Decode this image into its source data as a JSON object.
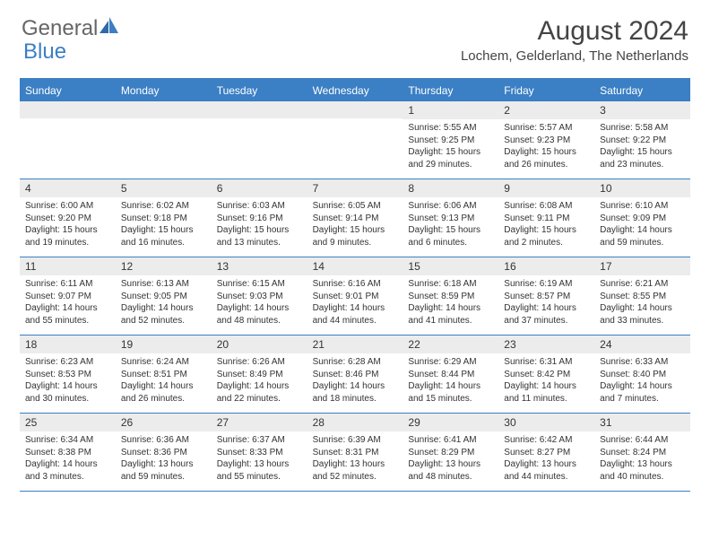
{
  "logo": {
    "word1": "General",
    "word2": "Blue"
  },
  "title": "August 2024",
  "location": "Lochem, Gelderland, The Netherlands",
  "colors": {
    "accent": "#3b7fc4",
    "header_text": "#ffffff",
    "daynum_bg": "#ececec",
    "body_text": "#333333",
    "title_text": "#444444"
  },
  "day_headers": [
    "Sunday",
    "Monday",
    "Tuesday",
    "Wednesday",
    "Thursday",
    "Friday",
    "Saturday"
  ],
  "weeks": [
    [
      {
        "n": "",
        "sr": "",
        "ss": "",
        "dl": ""
      },
      {
        "n": "",
        "sr": "",
        "ss": "",
        "dl": ""
      },
      {
        "n": "",
        "sr": "",
        "ss": "",
        "dl": ""
      },
      {
        "n": "",
        "sr": "",
        "ss": "",
        "dl": ""
      },
      {
        "n": "1",
        "sr": "Sunrise: 5:55 AM",
        "ss": "Sunset: 9:25 PM",
        "dl": "Daylight: 15 hours and 29 minutes."
      },
      {
        "n": "2",
        "sr": "Sunrise: 5:57 AM",
        "ss": "Sunset: 9:23 PM",
        "dl": "Daylight: 15 hours and 26 minutes."
      },
      {
        "n": "3",
        "sr": "Sunrise: 5:58 AM",
        "ss": "Sunset: 9:22 PM",
        "dl": "Daylight: 15 hours and 23 minutes."
      }
    ],
    [
      {
        "n": "4",
        "sr": "Sunrise: 6:00 AM",
        "ss": "Sunset: 9:20 PM",
        "dl": "Daylight: 15 hours and 19 minutes."
      },
      {
        "n": "5",
        "sr": "Sunrise: 6:02 AM",
        "ss": "Sunset: 9:18 PM",
        "dl": "Daylight: 15 hours and 16 minutes."
      },
      {
        "n": "6",
        "sr": "Sunrise: 6:03 AM",
        "ss": "Sunset: 9:16 PM",
        "dl": "Daylight: 15 hours and 13 minutes."
      },
      {
        "n": "7",
        "sr": "Sunrise: 6:05 AM",
        "ss": "Sunset: 9:14 PM",
        "dl": "Daylight: 15 hours and 9 minutes."
      },
      {
        "n": "8",
        "sr": "Sunrise: 6:06 AM",
        "ss": "Sunset: 9:13 PM",
        "dl": "Daylight: 15 hours and 6 minutes."
      },
      {
        "n": "9",
        "sr": "Sunrise: 6:08 AM",
        "ss": "Sunset: 9:11 PM",
        "dl": "Daylight: 15 hours and 2 minutes."
      },
      {
        "n": "10",
        "sr": "Sunrise: 6:10 AM",
        "ss": "Sunset: 9:09 PM",
        "dl": "Daylight: 14 hours and 59 minutes."
      }
    ],
    [
      {
        "n": "11",
        "sr": "Sunrise: 6:11 AM",
        "ss": "Sunset: 9:07 PM",
        "dl": "Daylight: 14 hours and 55 minutes."
      },
      {
        "n": "12",
        "sr": "Sunrise: 6:13 AM",
        "ss": "Sunset: 9:05 PM",
        "dl": "Daylight: 14 hours and 52 minutes."
      },
      {
        "n": "13",
        "sr": "Sunrise: 6:15 AM",
        "ss": "Sunset: 9:03 PM",
        "dl": "Daylight: 14 hours and 48 minutes."
      },
      {
        "n": "14",
        "sr": "Sunrise: 6:16 AM",
        "ss": "Sunset: 9:01 PM",
        "dl": "Daylight: 14 hours and 44 minutes."
      },
      {
        "n": "15",
        "sr": "Sunrise: 6:18 AM",
        "ss": "Sunset: 8:59 PM",
        "dl": "Daylight: 14 hours and 41 minutes."
      },
      {
        "n": "16",
        "sr": "Sunrise: 6:19 AM",
        "ss": "Sunset: 8:57 PM",
        "dl": "Daylight: 14 hours and 37 minutes."
      },
      {
        "n": "17",
        "sr": "Sunrise: 6:21 AM",
        "ss": "Sunset: 8:55 PM",
        "dl": "Daylight: 14 hours and 33 minutes."
      }
    ],
    [
      {
        "n": "18",
        "sr": "Sunrise: 6:23 AM",
        "ss": "Sunset: 8:53 PM",
        "dl": "Daylight: 14 hours and 30 minutes."
      },
      {
        "n": "19",
        "sr": "Sunrise: 6:24 AM",
        "ss": "Sunset: 8:51 PM",
        "dl": "Daylight: 14 hours and 26 minutes."
      },
      {
        "n": "20",
        "sr": "Sunrise: 6:26 AM",
        "ss": "Sunset: 8:49 PM",
        "dl": "Daylight: 14 hours and 22 minutes."
      },
      {
        "n": "21",
        "sr": "Sunrise: 6:28 AM",
        "ss": "Sunset: 8:46 PM",
        "dl": "Daylight: 14 hours and 18 minutes."
      },
      {
        "n": "22",
        "sr": "Sunrise: 6:29 AM",
        "ss": "Sunset: 8:44 PM",
        "dl": "Daylight: 14 hours and 15 minutes."
      },
      {
        "n": "23",
        "sr": "Sunrise: 6:31 AM",
        "ss": "Sunset: 8:42 PM",
        "dl": "Daylight: 14 hours and 11 minutes."
      },
      {
        "n": "24",
        "sr": "Sunrise: 6:33 AM",
        "ss": "Sunset: 8:40 PM",
        "dl": "Daylight: 14 hours and 7 minutes."
      }
    ],
    [
      {
        "n": "25",
        "sr": "Sunrise: 6:34 AM",
        "ss": "Sunset: 8:38 PM",
        "dl": "Daylight: 14 hours and 3 minutes."
      },
      {
        "n": "26",
        "sr": "Sunrise: 6:36 AM",
        "ss": "Sunset: 8:36 PM",
        "dl": "Daylight: 13 hours and 59 minutes."
      },
      {
        "n": "27",
        "sr": "Sunrise: 6:37 AM",
        "ss": "Sunset: 8:33 PM",
        "dl": "Daylight: 13 hours and 55 minutes."
      },
      {
        "n": "28",
        "sr": "Sunrise: 6:39 AM",
        "ss": "Sunset: 8:31 PM",
        "dl": "Daylight: 13 hours and 52 minutes."
      },
      {
        "n": "29",
        "sr": "Sunrise: 6:41 AM",
        "ss": "Sunset: 8:29 PM",
        "dl": "Daylight: 13 hours and 48 minutes."
      },
      {
        "n": "30",
        "sr": "Sunrise: 6:42 AM",
        "ss": "Sunset: 8:27 PM",
        "dl": "Daylight: 13 hours and 44 minutes."
      },
      {
        "n": "31",
        "sr": "Sunrise: 6:44 AM",
        "ss": "Sunset: 8:24 PM",
        "dl": "Daylight: 13 hours and 40 minutes."
      }
    ]
  ]
}
